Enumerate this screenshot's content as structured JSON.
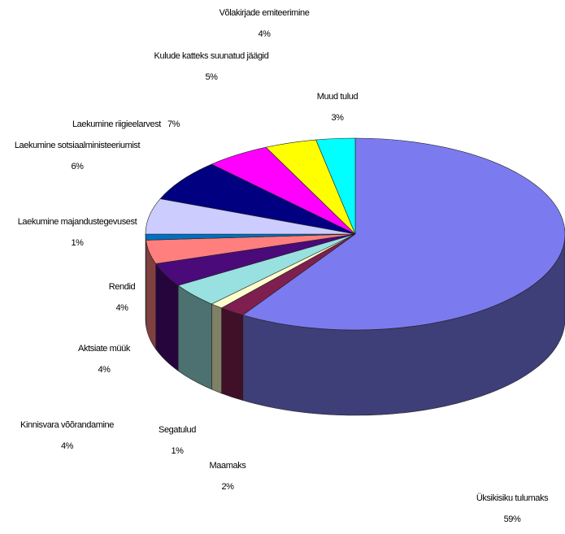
{
  "chart_data": {
    "type": "pie3d",
    "categories": [
      "Üksikisiku tulumaks",
      "Maamaks",
      "Segatulud",
      "Kinnisvara võõrandamine",
      "Aktsiate müük",
      "Rendid",
      "Laekumine majandustegevusest",
      "Laekumine sotsiaalministeeriumist",
      "Laekumine riigieelarvest",
      "Kulude katteks suunatud jäägid",
      "Võlakirjade emiteerimine",
      "Muud tulud"
    ],
    "values": [
      59,
      2,
      1,
      4,
      4,
      4,
      1,
      6,
      7,
      5,
      4,
      3
    ],
    "value_labels": [
      "59%",
      "2%",
      "1%",
      "4%",
      "4%",
      "4%",
      "1%",
      "6%",
      "7%",
      "5%",
      "4%",
      "3%"
    ],
    "colors": [
      "#7b7bef",
      "#7f1f4f",
      "#ffffcc",
      "#99e0e0",
      "#4b0a7a",
      "#ff7f7f",
      "#0070c0",
      "#ccccff",
      "#000080",
      "#ff00ff",
      "#ffff00",
      "#00ffff"
    ]
  }
}
